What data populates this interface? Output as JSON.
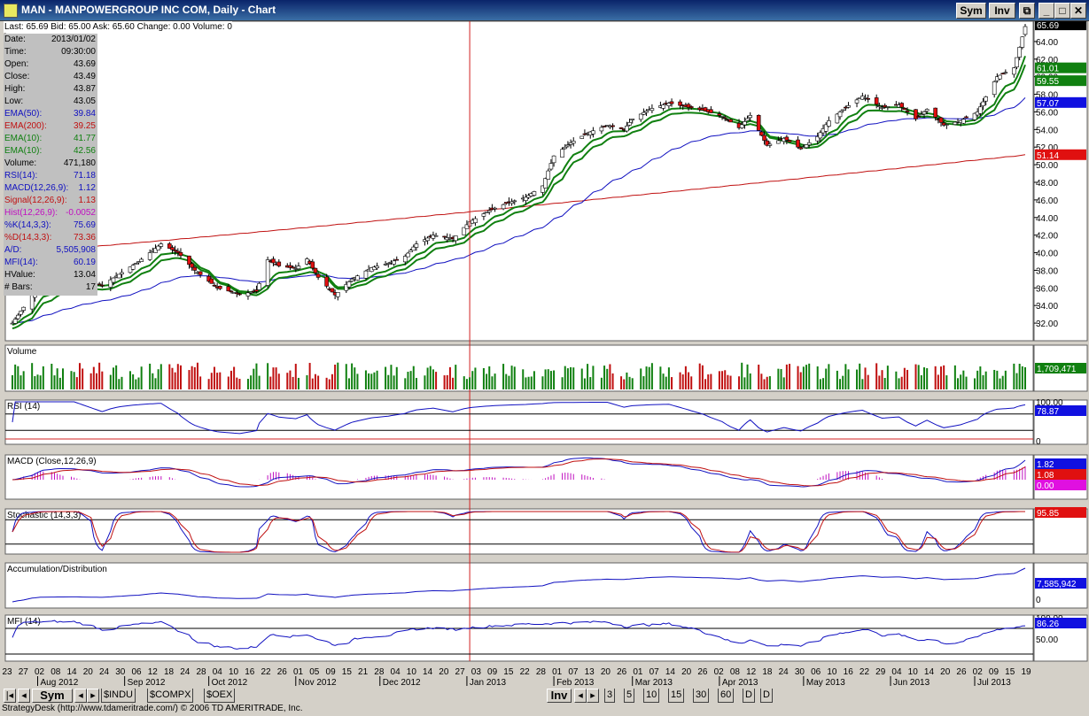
{
  "window": {
    "title": "MAN - MANPOWERGROUP INC COM, Daily - Chart",
    "buttons": [
      "Sym",
      "Inv"
    ]
  },
  "quote_bar": {
    "last": "Last: 65.69",
    "bid": "Bid: 65.00",
    "ask": "Ask: 65.60",
    "change": "Change: 0.00",
    "volume": "Volume: 0"
  },
  "info_panel": [
    {
      "label": "Date:",
      "value": "2013/01/02",
      "color": "#000000"
    },
    {
      "label": "Time:",
      "value": "09:30:00",
      "color": "#000000"
    },
    {
      "label": "Open:",
      "value": "43.69",
      "color": "#000000"
    },
    {
      "label": "Close:",
      "value": "43.49",
      "color": "#000000"
    },
    {
      "label": "High:",
      "value": "43.87",
      "color": "#000000"
    },
    {
      "label": "Low:",
      "value": "43.05",
      "color": "#000000"
    },
    {
      "label": "EMA(50):",
      "value": "39.84",
      "color": "#1010c0"
    },
    {
      "label": "EMA(200):",
      "value": "39.25",
      "color": "#c01010"
    },
    {
      "label": "EMA(10):",
      "value": "41.77",
      "color": "#108010"
    },
    {
      "label": "EMA(10):",
      "value": "42.56",
      "color": "#108010"
    },
    {
      "label": "Volume:",
      "value": "471,180",
      "color": "#000000"
    },
    {
      "label": "RSI(14):",
      "value": "71.18",
      "color": "#1010c0"
    },
    {
      "label": "MACD(12,26,9):",
      "value": "1.12",
      "color": "#1010c0"
    },
    {
      "label": "Signal(12,26,9):",
      "value": "1.13",
      "color": "#c01010"
    },
    {
      "label": "Hist(12,26,9):",
      "value": "-0.0052",
      "color": "#c010c0"
    },
    {
      "label": "%K(14,3,3):",
      "value": "75.69",
      "color": "#1010c0"
    },
    {
      "label": "%D(14,3,3):",
      "value": "73.36",
      "color": "#c01010"
    },
    {
      "label": "A/D:",
      "value": "5,505,908",
      "color": "#1010c0"
    },
    {
      "label": "MFI(14):",
      "value": "60.19",
      "color": "#1010c0"
    },
    {
      "label": "HValue:",
      "value": "13.04",
      "color": "#000000"
    },
    {
      "label": "# Bars:",
      "value": "17",
      "color": "#000000"
    }
  ],
  "panels": {
    "volume": "Volume",
    "rsi": "RSI (14)",
    "macd": "MACD (Close,12,26,9)",
    "stochastic": "Stochastic (14,3,3)",
    "ad": "Accumulation/Distribution",
    "mfi": "MFI (14)"
  },
  "price_axis_ticks": [
    "64.00",
    "62.00",
    "60.00",
    "58.00",
    "56.00",
    "54.00",
    "52.00",
    "50.00",
    "48.00",
    "46.00",
    "44.00",
    "42.00",
    "40.00",
    "38.00",
    "36.00",
    "34.00",
    "32.00"
  ],
  "axis_flags": {
    "price": [
      {
        "text": "65.69",
        "bg": "#000000",
        "fg": "#ffffff"
      },
      {
        "text": "61.01",
        "bg": "#108010",
        "fg": "#ffffff"
      },
      {
        "text": "59.55",
        "bg": "#108010",
        "fg": "#ffffff"
      },
      {
        "text": "57.07",
        "bg": "#1010e0",
        "fg": "#ffffff"
      },
      {
        "text": "51.14",
        "bg": "#e01010",
        "fg": "#ffffff"
      }
    ],
    "volume": {
      "text": "1,709,471",
      "bg": "#108010",
      "fg": "#ffffff"
    },
    "rsi": {
      "text": "78.87",
      "bg": "#1010e0",
      "fg": "#ffffff"
    },
    "rsi_ticks": [
      "100.00",
      "0"
    ],
    "macd": [
      {
        "text": "1.82",
        "bg": "#1010e0",
        "fg": "#ffffff"
      },
      {
        "text": "1.08",
        "bg": "#e01010",
        "fg": "#ffffff"
      },
      {
        "text": "0.00",
        "bg": "#e010e0",
        "fg": "#ffffff"
      }
    ],
    "stoch": {
      "text": "95.85",
      "bg": "#e01010",
      "fg": "#ffffff"
    },
    "ad": {
      "text": "7,585,942",
      "bg": "#1010e0",
      "fg": "#ffffff"
    },
    "ad_ticks": [
      "0"
    ],
    "mfi": {
      "text": "86.26",
      "bg": "#1010e0",
      "fg": "#ffffff"
    },
    "mfi_ticks": [
      "100.00",
      "50.00"
    ]
  },
  "x_axis": {
    "days": [
      "23",
      "27",
      "02",
      "08",
      "14",
      "20",
      "24",
      "30",
      "06",
      "12",
      "18",
      "24",
      "28",
      "04",
      "10",
      "16",
      "22",
      "26",
      "01",
      "05",
      "09",
      "15",
      "21",
      "28",
      "04",
      "10",
      "14",
      "20",
      "27",
      "03",
      "09",
      "15",
      "22",
      "28",
      "01",
      "07",
      "13",
      "20",
      "26",
      "01",
      "07",
      "14",
      "20",
      "26",
      "02",
      "08",
      "12",
      "18",
      "24",
      "30",
      "06",
      "10",
      "16",
      "22",
      "29",
      "04",
      "10",
      "14",
      "20",
      "26",
      "02",
      "09",
      "15",
      "19"
    ],
    "months": [
      "Aug 2012",
      "Sep 2012",
      "Oct 2012",
      "Nov 2012",
      "Dec 2012",
      "Jan 2013",
      "Feb 2013",
      "Mar 2013",
      "Apr 2013",
      "May 2013",
      "Jun 2013",
      "Jul 2013"
    ]
  },
  "navbar": {
    "sym_label": "Sym",
    "watch_tabs": [
      "$INDU",
      "$COMPX",
      "$OEX"
    ],
    "inv_label": "Inv",
    "periods": [
      "3",
      "5",
      "10",
      "15",
      "30",
      "60",
      "D",
      "D"
    ]
  },
  "status": "StrategyDesk (http://www.tdameritrade.com/) © 2006 TD AMERITRADE, Inc.",
  "chart_data": {
    "type": "candlestick",
    "symbol": "MAN",
    "title": "MAN - MANPOWERGROUP INC COM, Daily - Chart",
    "ylim": [
      30.5,
      65.5
    ],
    "x_range": [
      "2012-07-23",
      "2013-07-19"
    ],
    "anchors": [
      {
        "date": "2012-07-23",
        "close": 32.0
      },
      {
        "date": "2012-07-27",
        "close": 33.8
      },
      {
        "date": "2012-08-02",
        "close": 36.5
      },
      {
        "date": "2012-08-14",
        "close": 36.8
      },
      {
        "date": "2012-08-24",
        "close": 36.3
      },
      {
        "date": "2012-09-06",
        "close": 39.0
      },
      {
        "date": "2012-09-14",
        "close": 41.0
      },
      {
        "date": "2012-09-20",
        "close": 40.0
      },
      {
        "date": "2012-09-26",
        "close": 38.0
      },
      {
        "date": "2012-10-04",
        "close": 36.0
      },
      {
        "date": "2012-10-12",
        "close": 35.3
      },
      {
        "date": "2012-10-18",
        "close": 35.6
      },
      {
        "date": "2012-10-22",
        "close": 39.2
      },
      {
        "date": "2012-10-26",
        "close": 38.5
      },
      {
        "date": "2012-11-01",
        "close": 38.2
      },
      {
        "date": "2012-11-05",
        "close": 39.3
      },
      {
        "date": "2012-11-09",
        "close": 37.2
      },
      {
        "date": "2012-11-15",
        "close": 35.2
      },
      {
        "date": "2012-11-21",
        "close": 37.0
      },
      {
        "date": "2012-11-28",
        "close": 38.3
      },
      {
        "date": "2012-12-04",
        "close": 38.8
      },
      {
        "date": "2012-12-10",
        "close": 39.6
      },
      {
        "date": "2012-12-14",
        "close": 41.0
      },
      {
        "date": "2012-12-20",
        "close": 42.0
      },
      {
        "date": "2012-12-27",
        "close": 41.6
      },
      {
        "date": "2013-01-02",
        "close": 43.5
      },
      {
        "date": "2013-01-09",
        "close": 44.8
      },
      {
        "date": "2013-01-15",
        "close": 45.6
      },
      {
        "date": "2013-01-22",
        "close": 46.3
      },
      {
        "date": "2013-01-28",
        "close": 47.6
      },
      {
        "date": "2013-02-01",
        "close": 51.0
      },
      {
        "date": "2013-02-07",
        "close": 52.5
      },
      {
        "date": "2013-02-13",
        "close": 53.6
      },
      {
        "date": "2013-02-20",
        "close": 54.5
      },
      {
        "date": "2013-02-26",
        "close": 54.0
      },
      {
        "date": "2013-03-01",
        "close": 55.2
      },
      {
        "date": "2013-03-07",
        "close": 56.3
      },
      {
        "date": "2013-03-14",
        "close": 57.0
      },
      {
        "date": "2013-03-20",
        "close": 56.6
      },
      {
        "date": "2013-03-26",
        "close": 56.2
      },
      {
        "date": "2013-04-02",
        "close": 55.5
      },
      {
        "date": "2013-04-08",
        "close": 54.2
      },
      {
        "date": "2013-04-12",
        "close": 55.6
      },
      {
        "date": "2013-04-18",
        "close": 52.2
      },
      {
        "date": "2013-04-24",
        "close": 53.0
      },
      {
        "date": "2013-04-30",
        "close": 51.8
      },
      {
        "date": "2013-05-06",
        "close": 53.2
      },
      {
        "date": "2013-05-10",
        "close": 55.0
      },
      {
        "date": "2013-05-16",
        "close": 56.5
      },
      {
        "date": "2013-05-22",
        "close": 57.8
      },
      {
        "date": "2013-05-29",
        "close": 56.5
      },
      {
        "date": "2013-06-04",
        "close": 56.8
      },
      {
        "date": "2013-06-10",
        "close": 55.2
      },
      {
        "date": "2013-06-14",
        "close": 56.3
      },
      {
        "date": "2013-06-20",
        "close": 54.5
      },
      {
        "date": "2013-06-26",
        "close": 55.0
      },
      {
        "date": "2013-07-02",
        "close": 56.0
      },
      {
        "date": "2013-07-09",
        "close": 60.0
      },
      {
        "date": "2013-07-15",
        "close": 61.0
      },
      {
        "date": "2013-07-19",
        "close": 65.7
      }
    ],
    "overlays": [
      {
        "name": "EMA(50)",
        "color": "#1010c0",
        "start": 37.5,
        "end": 57.07
      },
      {
        "name": "EMA(200)",
        "color": "#c01010",
        "start": 40.0,
        "end": 51.14
      },
      {
        "name": "EMA(10)",
        "color": "#108010",
        "end": 59.55
      },
      {
        "name": "EMA(10)",
        "color": "#108010",
        "end": 61.01
      }
    ],
    "cursor_date": "2013-01-02",
    "last": 65.69
  }
}
